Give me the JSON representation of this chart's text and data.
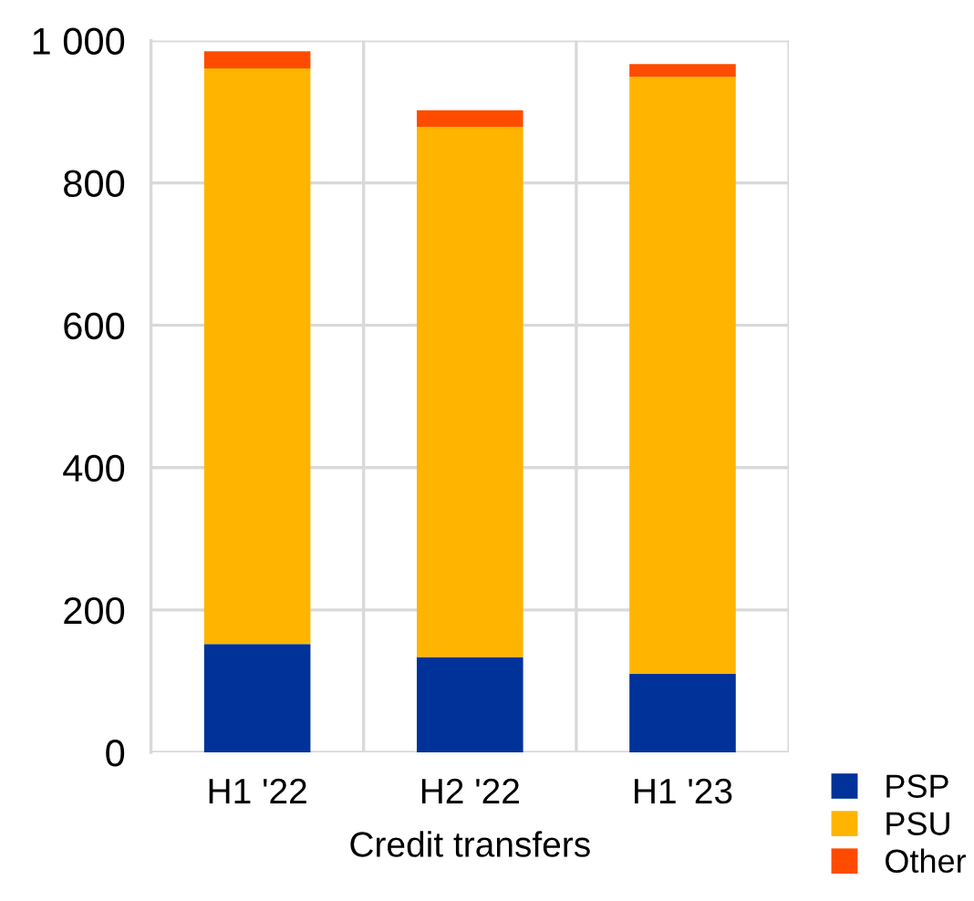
{
  "chart_data": {
    "type": "bar",
    "stacked": true,
    "xlabel": "Credit transfers",
    "categories": [
      "H1 '22",
      "H2 '22",
      "H1 '23"
    ],
    "series": [
      {
        "name": "PSP",
        "color": "#003299",
        "values": [
          152,
          134,
          110
        ]
      },
      {
        "name": "PSU",
        "color": "#ffb400",
        "values": [
          809,
          745,
          839
        ]
      },
      {
        "name": "Other",
        "color": "#ff4b00",
        "values": [
          24,
          23,
          18
        ]
      }
    ],
    "ylim": [
      0,
      1000
    ],
    "yticks": [
      0,
      200,
      400,
      600,
      800,
      {
        "value": 1000,
        "label": "1 000"
      }
    ],
    "grid": true,
    "legend": "bottom right"
  }
}
